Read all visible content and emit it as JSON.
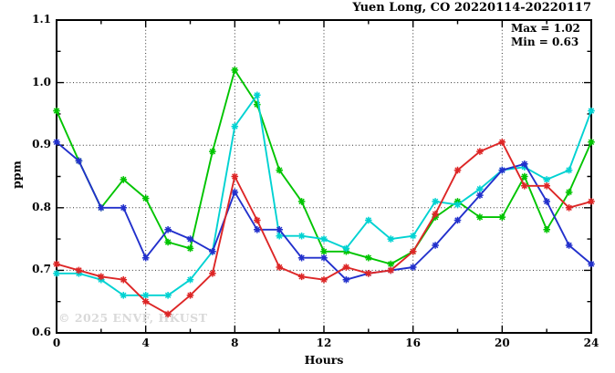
{
  "header": {
    "title": "Yuen Long, CO 20220114-20220117"
  },
  "annotation": {
    "max_label": "Max = 1.02",
    "min_label": "Min = 0.63"
  },
  "watermark": "© 2025 ENVF, HKUST",
  "chart_data": {
    "type": "line",
    "title": "Yuen Long, CO 20220114-20220117",
    "xlabel": "Hours",
    "ylabel": "ppm",
    "xlim": [
      0,
      24
    ],
    "ylim": [
      0.6,
      1.1
    ],
    "grid": "dotted",
    "legend_position": "none",
    "x_gridlines": [
      4,
      8,
      12,
      16,
      20
    ],
    "y_gridlines": [
      0.7,
      0.8,
      0.9,
      1.0
    ],
    "x_major_ticks": [
      0,
      4,
      8,
      12,
      16,
      20,
      24
    ],
    "x_tick_labels": [
      "0",
      "4",
      "8",
      "12",
      "16",
      "20",
      "24"
    ],
    "x_minor_ticks": [
      2,
      6,
      10,
      14,
      18,
      22
    ],
    "y_major_ticks": [
      0.6,
      0.7,
      0.8,
      0.9,
      1.0,
      1.1
    ],
    "y_tick_labels": [
      "0.6",
      "0.7",
      "0.8",
      "0.9",
      "1.0",
      "1.1"
    ],
    "y_minor_ticks": [
      0.65,
      0.75,
      0.85,
      0.95,
      1.05
    ],
    "stat_max": 1.02,
    "stat_min": 0.63,
    "x": [
      0,
      1,
      2,
      3,
      4,
      5,
      6,
      7,
      8,
      9,
      10,
      11,
      12,
      13,
      14,
      15,
      16,
      17,
      18,
      19,
      20,
      21,
      22,
      23,
      24
    ],
    "series": [
      {
        "name": "series-green",
        "color": "#00c400",
        "values": [
          0.955,
          0.875,
          0.8,
          0.845,
          0.815,
          0.745,
          0.735,
          0.89,
          1.02,
          0.965,
          0.86,
          0.81,
          0.73,
          0.73,
          0.72,
          0.71,
          0.73,
          0.785,
          0.81,
          0.785,
          0.785,
          0.85,
          0.765,
          0.825,
          0.905
        ]
      },
      {
        "name": "series-cyan",
        "color": "#00d2d2",
        "values": [
          0.695,
          0.695,
          0.685,
          0.66,
          0.66,
          0.66,
          0.685,
          0.73,
          0.93,
          0.98,
          0.755,
          0.755,
          0.75,
          0.735,
          0.78,
          0.75,
          0.755,
          0.81,
          0.805,
          0.83,
          0.86,
          0.865,
          0.845,
          0.86,
          0.955
        ]
      },
      {
        "name": "series-blue",
        "color": "#2230cc",
        "values": [
          0.905,
          0.875,
          0.8,
          0.8,
          0.72,
          0.765,
          0.75,
          0.73,
          0.825,
          0.765,
          0.765,
          0.72,
          0.72,
          0.685,
          0.695,
          0.7,
          0.705,
          0.74,
          0.78,
          0.82,
          0.86,
          0.87,
          0.81,
          0.74,
          0.71
        ]
      },
      {
        "name": "series-red",
        "color": "#dd2626",
        "values": [
          0.71,
          0.7,
          0.69,
          0.685,
          0.65,
          0.63,
          0.66,
          0.695,
          0.85,
          0.78,
          0.705,
          0.69,
          0.685,
          0.705,
          0.695,
          0.7,
          0.73,
          0.79,
          0.86,
          0.89,
          0.905,
          0.835,
          0.835,
          0.8,
          0.81
        ]
      }
    ]
  }
}
